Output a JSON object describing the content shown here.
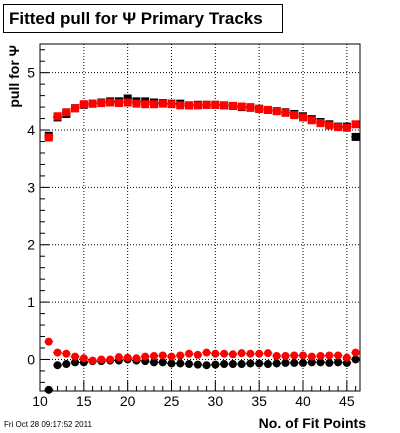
{
  "title": "Fitted pull for Ψ  Primary Tracks",
  "timestamp": "Fri Oct 28 09:17:52 2011",
  "chart_data": {
    "type": "scatter",
    "xlabel": "No. of Fit Points",
    "ylabel": "pull for Ψ",
    "xlim": [
      10,
      46.5
    ],
    "ylim": [
      -0.55,
      5.5
    ],
    "x_ticks": [
      10,
      15,
      20,
      25,
      30,
      35,
      40,
      45
    ],
    "y_ticks": [
      0,
      1,
      2,
      3,
      4,
      5
    ],
    "grid": true,
    "legend": "none",
    "x": [
      11,
      12,
      13,
      14,
      15,
      16,
      17,
      18,
      19,
      20,
      21,
      22,
      23,
      24,
      25,
      26,
      27,
      28,
      29,
      30,
      31,
      32,
      33,
      34,
      35,
      36,
      37,
      38,
      39,
      40,
      41,
      42,
      43,
      44,
      45,
      46
    ],
    "series": [
      {
        "color": "#000000",
        "marker": "square",
        "values": [
          3.9,
          4.22,
          4.28,
          4.38,
          4.44,
          4.46,
          4.48,
          4.5,
          4.5,
          4.55,
          4.5,
          4.5,
          4.48,
          4.47,
          4.46,
          4.46,
          4.43,
          4.44,
          4.44,
          4.44,
          4.43,
          4.42,
          4.4,
          4.39,
          4.37,
          4.35,
          4.33,
          4.31,
          4.28,
          4.24,
          4.19,
          4.14,
          4.1,
          4.06,
          4.06,
          3.88
        ]
      },
      {
        "color": "#ff0000",
        "marker": "square",
        "values": [
          3.87,
          4.24,
          4.31,
          4.38,
          4.45,
          4.46,
          4.47,
          4.48,
          4.47,
          4.48,
          4.46,
          4.45,
          4.45,
          4.46,
          4.45,
          4.43,
          4.43,
          4.43,
          4.44,
          4.44,
          4.43,
          4.42,
          4.41,
          4.4,
          4.37,
          4.35,
          4.33,
          4.3,
          4.26,
          4.22,
          4.17,
          4.12,
          4.08,
          4.05,
          4.04,
          4.1
        ]
      },
      {
        "color": "#000000",
        "marker": "circle",
        "values": [
          -0.53,
          -0.1,
          -0.08,
          -0.05,
          -0.05,
          -0.03,
          -0.03,
          -0.02,
          -0.02,
          0.0,
          -0.02,
          -0.03,
          -0.05,
          -0.05,
          -0.07,
          -0.07,
          -0.08,
          -0.09,
          -0.1,
          -0.09,
          -0.08,
          -0.08,
          -0.08,
          -0.07,
          -0.07,
          -0.08,
          -0.07,
          -0.06,
          -0.06,
          -0.06,
          -0.05,
          -0.05,
          -0.06,
          -0.05,
          -0.06,
          0.0
        ]
      },
      {
        "color": "#ff0000",
        "marker": "circle",
        "values": [
          0.31,
          0.12,
          0.1,
          0.05,
          0.02,
          -0.02,
          0.0,
          0.0,
          0.04,
          0.03,
          0.02,
          0.05,
          0.06,
          0.07,
          0.05,
          0.07,
          0.1,
          0.08,
          0.12,
          0.1,
          0.1,
          0.09,
          0.11,
          0.1,
          0.1,
          0.11,
          0.06,
          0.06,
          0.07,
          0.07,
          0.05,
          0.06,
          0.07,
          0.07,
          0.03,
          0.12
        ]
      }
    ]
  }
}
